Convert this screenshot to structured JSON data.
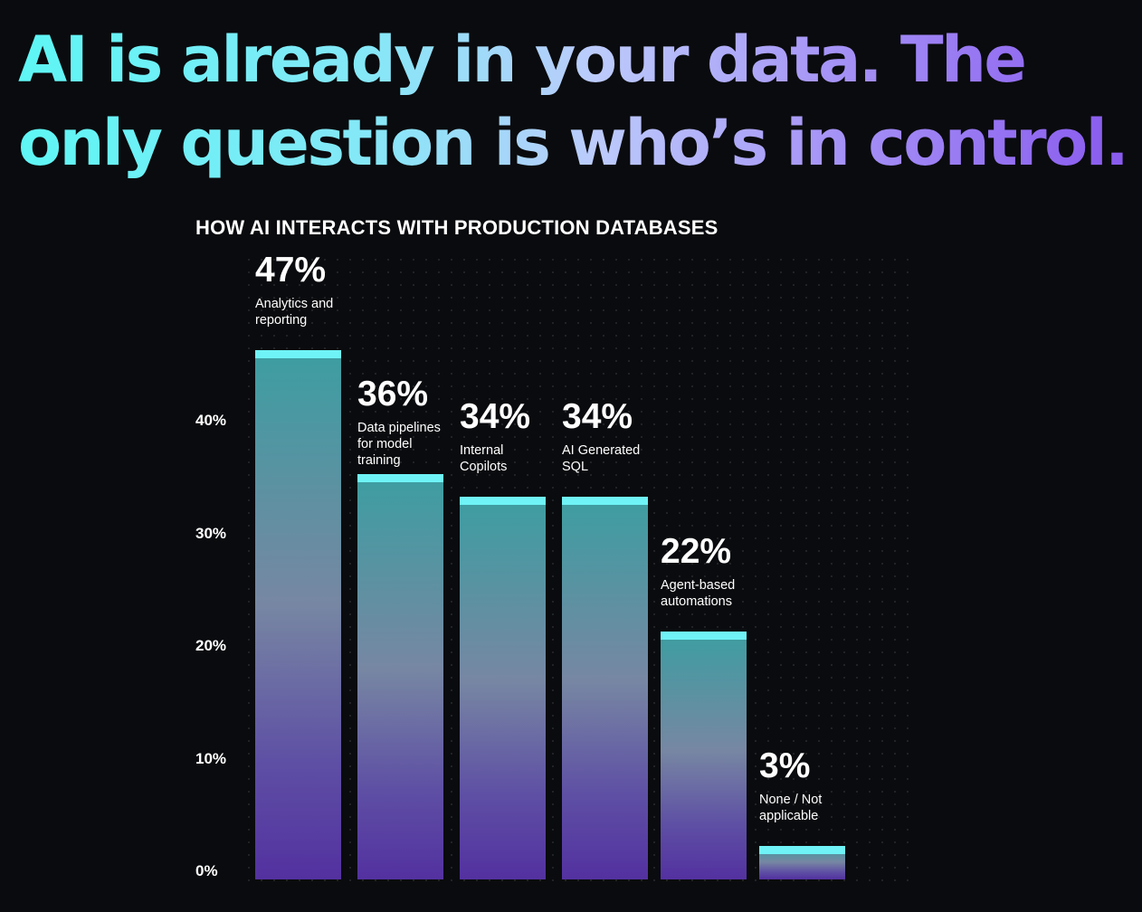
{
  "headline": {
    "text": "AI is already in your data. The only question is who’s in control."
  },
  "colors": {
    "background": "#0a0b0e",
    "headline_gradient_start": "#5ef6f5",
    "headline_gradient_end": "#8859ee",
    "bar_cap": "#6ff3f6",
    "bar_top": "#3c9ea1",
    "bar_bottom": "#5331a0"
  },
  "chart_data": {
    "type": "bar",
    "title": "HOW AI INTERACTS WITH PRODUCTION DATABASES",
    "categories": [
      "Analytics and\nreporting",
      "Data pipelines\nfor model\ntraining",
      "Internal\nCopilots",
      "AI Generated\n SQL",
      "Agent-based\nautomations",
      "None / Not\napplicable"
    ],
    "values": [
      47,
      36,
      34,
      34,
      22,
      3
    ],
    "value_labels": [
      "47%",
      "36%",
      "34%",
      "34%",
      "22%",
      "3%"
    ],
    "y_ticks": [
      {
        "value": 0,
        "label": "0%"
      },
      {
        "value": 10,
        "label": "10%"
      },
      {
        "value": 20,
        "label": "20%"
      },
      {
        "value": 30,
        "label": "30%"
      },
      {
        "value": 40,
        "label": "40%"
      }
    ],
    "ylim": [
      0,
      47
    ],
    "xlabel": "",
    "ylabel": "",
    "grid": "dotted background",
    "legend": "none"
  }
}
